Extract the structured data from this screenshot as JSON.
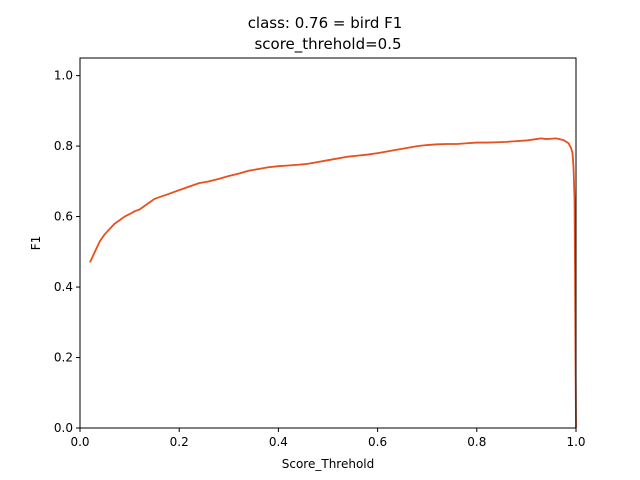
{
  "chart_data": {
    "type": "line",
    "title": "class: 0.76 = bird F1",
    "subtitle": "score_threhold=0.5",
    "xlabel": "Score_Threhold",
    "ylabel": "F1",
    "xlim": [
      0.0,
      1.0
    ],
    "ylim": [
      0.0,
      1.05
    ],
    "xticks": [
      "0.0",
      "0.2",
      "0.4",
      "0.6",
      "0.8",
      "1.0"
    ],
    "yticks": [
      "0.0",
      "0.2",
      "0.4",
      "0.6",
      "0.8",
      "1.0"
    ],
    "grid": false,
    "series": [
      {
        "color": "#e8501c",
        "x": [
          0.02,
          0.025,
          0.03,
          0.035,
          0.04,
          0.05,
          0.06,
          0.07,
          0.08,
          0.09,
          0.1,
          0.11,
          0.12,
          0.13,
          0.14,
          0.15,
          0.16,
          0.18,
          0.2,
          0.22,
          0.24,
          0.26,
          0.28,
          0.3,
          0.32,
          0.34,
          0.36,
          0.38,
          0.4,
          0.42,
          0.44,
          0.46,
          0.48,
          0.5,
          0.52,
          0.54,
          0.56,
          0.58,
          0.6,
          0.62,
          0.64,
          0.66,
          0.68,
          0.7,
          0.72,
          0.74,
          0.76,
          0.78,
          0.8,
          0.82,
          0.84,
          0.86,
          0.88,
          0.9,
          0.92,
          0.93,
          0.94,
          0.96,
          0.975,
          0.985,
          0.99,
          0.993,
          0.995,
          0.997,
          0.998,
          0.999,
          1.0
        ],
        "y": [
          0.47,
          0.485,
          0.5,
          0.515,
          0.53,
          0.55,
          0.565,
          0.58,
          0.59,
          0.6,
          0.607,
          0.615,
          0.62,
          0.63,
          0.64,
          0.65,
          0.655,
          0.665,
          0.675,
          0.685,
          0.695,
          0.7,
          0.707,
          0.715,
          0.722,
          0.73,
          0.735,
          0.74,
          0.743,
          0.745,
          0.747,
          0.75,
          0.755,
          0.76,
          0.765,
          0.77,
          0.773,
          0.776,
          0.78,
          0.785,
          0.79,
          0.795,
          0.8,
          0.803,
          0.805,
          0.806,
          0.806,
          0.808,
          0.81,
          0.81,
          0.811,
          0.812,
          0.814,
          0.816,
          0.82,
          0.822,
          0.82,
          0.822,
          0.817,
          0.808,
          0.795,
          0.78,
          0.74,
          0.65,
          0.45,
          0.2,
          0.0
        ]
      }
    ]
  }
}
